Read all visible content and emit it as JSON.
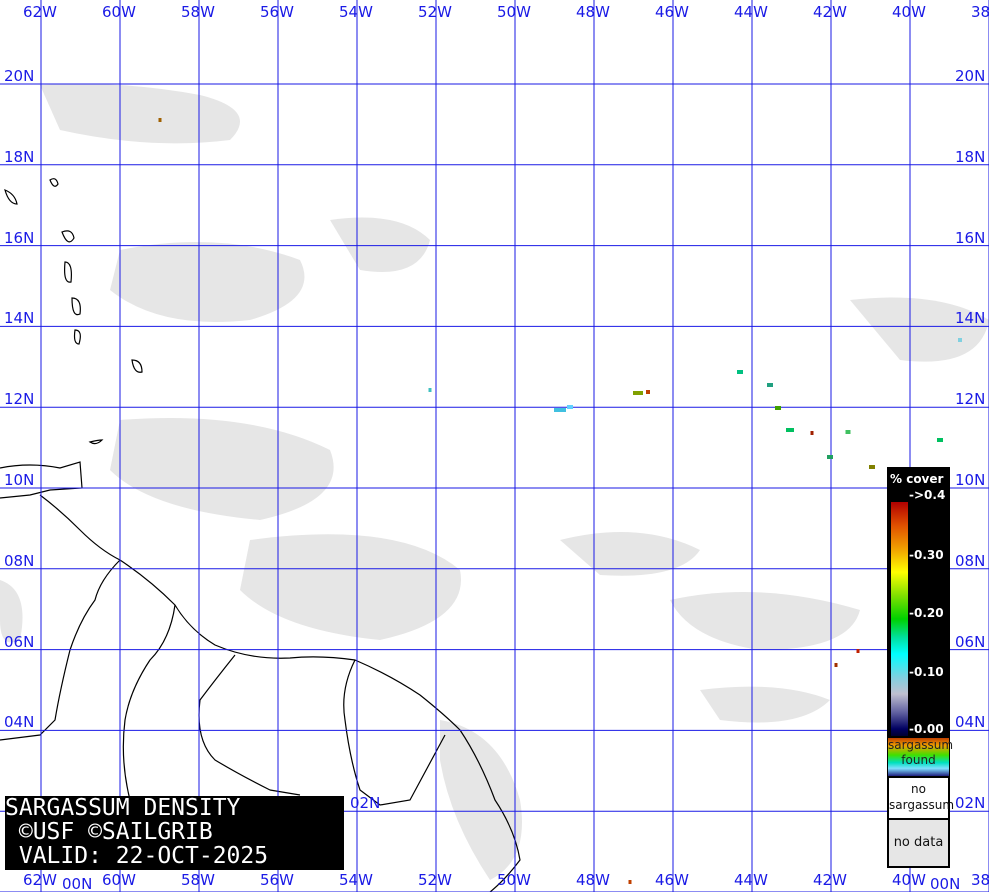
{
  "map": {
    "longitude_labels": [
      "62W",
      "60W",
      "58W",
      "56W",
      "54W",
      "52W",
      "50W",
      "48W",
      "46W",
      "44W",
      "42W",
      "40W",
      "38"
    ],
    "latitude_labels": [
      "20N",
      "18N",
      "16N",
      "14N",
      "12N",
      "10N",
      "08N",
      "06N",
      "04N",
      "02N",
      "00N"
    ],
    "grid_color": "#1a1ae6",
    "land_outline_color": "#000000",
    "cloud_color": "#e6e6e6"
  },
  "title_box": {
    "line1": "SARGASSUM DENSITY",
    "line2": " ©USF ©SAILGRIB",
    "line3": " VALID: 22-OCT-2025"
  },
  "legend": {
    "title": "% cover",
    "ticks": [
      "->0.4",
      "-0.30",
      "-0.20",
      "-0.10",
      "-0.00"
    ],
    "found_label_1": "sargassum",
    "found_label_2": "found",
    "no_sargassum_1": "no",
    "no_sargassum_2": "sargassum",
    "no_data": "no data"
  }
}
